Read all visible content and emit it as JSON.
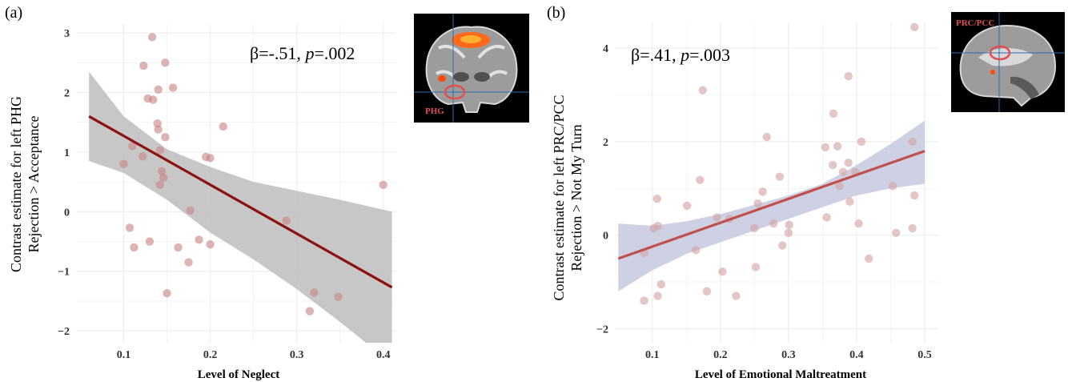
{
  "figure": {
    "panels": [
      {
        "label": "(a)",
        "stat_text": "β=-.51, p=.002",
        "stat_parts": [
          "β=-.51, ",
          "p",
          "=.002"
        ],
        "inset": {
          "region_label": "PHG",
          "view": "coronal"
        }
      },
      {
        "label": "(b)",
        "stat_text": "β=.41, p=.003",
        "stat_parts": [
          "β=.41, ",
          "p",
          "=.003"
        ],
        "inset": {
          "region_label": "PRC/PCC",
          "view": "sagittal"
        }
      }
    ]
  },
  "colors": {
    "a_line": "#8B1010",
    "a_band": "#BDBDBD",
    "a_point": "#C88585",
    "b_line": "#C0504D",
    "b_band": "#C5C9DF",
    "b_point": "#D4A3A3",
    "grid": "#EDEDED",
    "inset_marker": "#E05050"
  },
  "chart_data": [
    {
      "type": "scatter",
      "xlabel": "Level of Neglect",
      "ylabel": [
        "Contrast estimate for left PHG",
        "Rejection > Acceptance"
      ],
      "xlim": [
        0.045,
        0.415
      ],
      "ylim": [
        -2.2,
        3.15
      ],
      "xticks": [
        0.1,
        0.2,
        0.3,
        0.4
      ],
      "xtick_labels": [
        "0.1",
        "0.2",
        "0.3",
        "0.4"
      ],
      "yticks": [
        -2,
        -1,
        0,
        1,
        2,
        3
      ],
      "ytick_labels": [
        "−2",
        "−1",
        "0",
        "1",
        "2",
        "3"
      ],
      "grid": true,
      "fit": {
        "x": [
          0.06,
          0.41
        ],
        "y": [
          1.6,
          -1.27
        ]
      },
      "ci_band": {
        "x": [
          0.06,
          0.1,
          0.15,
          0.2,
          0.25,
          0.3,
          0.35,
          0.41
        ],
        "upper": [
          2.35,
          1.6,
          1.05,
          0.75,
          0.5,
          0.35,
          0.2,
          0.0
        ],
        "lower": [
          0.85,
          0.65,
          0.2,
          -0.35,
          -0.8,
          -1.3,
          -1.85,
          -2.55
        ]
      },
      "points": [
        {
          "x": 0.133,
          "y": 2.93
        },
        {
          "x": 0.123,
          "y": 2.45
        },
        {
          "x": 0.148,
          "y": 2.5
        },
        {
          "x": 0.157,
          "y": 2.08
        },
        {
          "x": 0.14,
          "y": 2.05
        },
        {
          "x": 0.128,
          "y": 1.9
        },
        {
          "x": 0.134,
          "y": 1.88
        },
        {
          "x": 0.139,
          "y": 1.48
        },
        {
          "x": 0.14,
          "y": 1.38
        },
        {
          "x": 0.148,
          "y": 1.25
        },
        {
          "x": 0.215,
          "y": 1.43
        },
        {
          "x": 0.11,
          "y": 1.1
        },
        {
          "x": 0.142,
          "y": 1.03
        },
        {
          "x": 0.122,
          "y": 0.93
        },
        {
          "x": 0.195,
          "y": 0.92
        },
        {
          "x": 0.2,
          "y": 0.9
        },
        {
          "x": 0.1,
          "y": 0.8
        },
        {
          "x": 0.144,
          "y": 0.68
        },
        {
          "x": 0.146,
          "y": 0.57
        },
        {
          "x": 0.142,
          "y": 0.45
        },
        {
          "x": 0.4,
          "y": 0.45
        },
        {
          "x": 0.177,
          "y": 0.02
        },
        {
          "x": 0.288,
          "y": -0.15
        },
        {
          "x": 0.107,
          "y": -0.27
        },
        {
          "x": 0.187,
          "y": -0.47
        },
        {
          "x": 0.13,
          "y": -0.5
        },
        {
          "x": 0.2,
          "y": -0.55
        },
        {
          "x": 0.112,
          "y": -0.6
        },
        {
          "x": 0.163,
          "y": -0.6
        },
        {
          "x": 0.175,
          "y": -0.85
        },
        {
          "x": 0.15,
          "y": -1.37
        },
        {
          "x": 0.32,
          "y": -1.36
        },
        {
          "x": 0.348,
          "y": -1.43
        },
        {
          "x": 0.315,
          "y": -1.67
        }
      ]
    },
    {
      "type": "scatter",
      "xlabel": "Level of Emotional Maltreatment",
      "ylabel": [
        "Contrast estimate for left PRC/PCC",
        "Rejection > Not My Turn"
      ],
      "xlim": [
        0.045,
        0.52
      ],
      "ylim": [
        -2.3,
        4.55
      ],
      "xticks": [
        0.1,
        0.2,
        0.3,
        0.4,
        0.5
      ],
      "xtick_labels": [
        "0.1",
        "0.2",
        "0.3",
        "0.4",
        "0.5"
      ],
      "yticks": [
        -2,
        0,
        2,
        4
      ],
      "ytick_labels": [
        "−2",
        "0",
        "2",
        "4"
      ],
      "grid": true,
      "fit": {
        "x": [
          0.05,
          0.5
        ],
        "y": [
          -0.5,
          1.8
        ]
      },
      "ci_band": {
        "x": [
          0.05,
          0.1,
          0.15,
          0.2,
          0.25,
          0.3,
          0.35,
          0.4,
          0.45,
          0.5
        ],
        "upper": [
          0.25,
          0.2,
          0.3,
          0.45,
          0.65,
          0.85,
          1.1,
          1.5,
          1.95,
          2.45
        ],
        "lower": [
          -1.2,
          -0.75,
          -0.4,
          -0.15,
          0.1,
          0.35,
          0.6,
          0.85,
          1.0,
          1.1
        ]
      },
      "points": [
        {
          "x": 0.485,
          "y": 4.45
        },
        {
          "x": 0.388,
          "y": 3.4
        },
        {
          "x": 0.174,
          "y": 3.1
        },
        {
          "x": 0.366,
          "y": 2.6
        },
        {
          "x": 0.268,
          "y": 2.1
        },
        {
          "x": 0.407,
          "y": 2.0
        },
        {
          "x": 0.482,
          "y": 2.0
        },
        {
          "x": 0.354,
          "y": 1.88
        },
        {
          "x": 0.372,
          "y": 1.9
        },
        {
          "x": 0.388,
          "y": 1.55
        },
        {
          "x": 0.365,
          "y": 1.5
        },
        {
          "x": 0.38,
          "y": 1.35
        },
        {
          "x": 0.398,
          "y": 1.35
        },
        {
          "x": 0.287,
          "y": 1.25
        },
        {
          "x": 0.17,
          "y": 1.18
        },
        {
          "x": 0.375,
          "y": 1.05
        },
        {
          "x": 0.453,
          "y": 1.05
        },
        {
          "x": 0.262,
          "y": 0.93
        },
        {
          "x": 0.485,
          "y": 0.85
        },
        {
          "x": 0.107,
          "y": 0.78
        },
        {
          "x": 0.39,
          "y": 0.72
        },
        {
          "x": 0.255,
          "y": 0.68
        },
        {
          "x": 0.151,
          "y": 0.63
        },
        {
          "x": 0.195,
          "y": 0.38
        },
        {
          "x": 0.356,
          "y": 0.38
        },
        {
          "x": 0.213,
          "y": 0.35
        },
        {
          "x": 0.403,
          "y": 0.25
        },
        {
          "x": 0.278,
          "y": 0.25
        },
        {
          "x": 0.301,
          "y": 0.22
        },
        {
          "x": 0.108,
          "y": 0.2
        },
        {
          "x": 0.102,
          "y": 0.15
        },
        {
          "x": 0.25,
          "y": 0.15
        },
        {
          "x": 0.482,
          "y": 0.15
        },
        {
          "x": 0.3,
          "y": 0.05
        },
        {
          "x": 0.458,
          "y": 0.05
        },
        {
          "x": 0.291,
          "y": -0.22
        },
        {
          "x": 0.164,
          "y": -0.32
        },
        {
          "x": 0.088,
          "y": -0.38
        },
        {
          "x": 0.418,
          "y": -0.5
        },
        {
          "x": 0.252,
          "y": -0.68
        },
        {
          "x": 0.203,
          "y": -0.78
        },
        {
          "x": 0.113,
          "y": -1.05
        },
        {
          "x": 0.18,
          "y": -1.2
        },
        {
          "x": 0.223,
          "y": -1.3
        },
        {
          "x": 0.108,
          "y": -1.3
        },
        {
          "x": 0.088,
          "y": -1.4
        }
      ]
    }
  ]
}
